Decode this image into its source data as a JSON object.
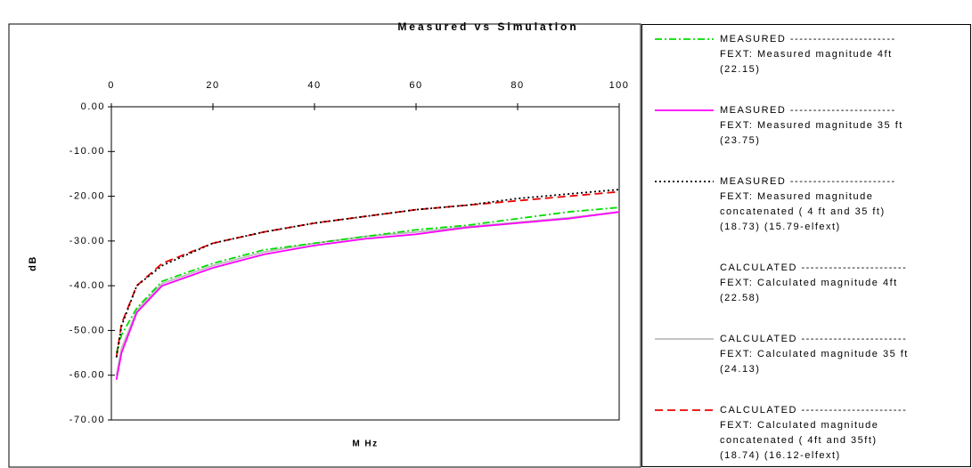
{
  "chart_data": {
    "type": "line",
    "title": "Measured vs Simulation",
    "x_label": "M Hz",
    "y_label": "dB",
    "x": [
      1,
      2,
      5,
      10,
      20,
      30,
      40,
      50,
      60,
      70,
      80,
      90,
      100
    ],
    "xlim": [
      0,
      100
    ],
    "xticks": [
      0,
      20,
      40,
      60,
      80,
      100
    ],
    "ylim": [
      -70,
      0
    ],
    "yticks": [
      {
        "value": 0,
        "label": "0.00"
      },
      {
        "value": -10,
        "label": "-10.00"
      },
      {
        "value": -20,
        "label": "-20.00"
      },
      {
        "value": -30,
        "label": "-30.00"
      },
      {
        "value": -40,
        "label": "-40.00"
      },
      {
        "value": -50,
        "label": "-50.00"
      },
      {
        "value": -60,
        "label": "-60.00"
      },
      {
        "value": -70,
        "label": "-70.00"
      }
    ],
    "series": [
      {
        "name": "MEASURED -----------------------\nFEXT: Measured magnitude  4ft\n(22.15)",
        "color": "#00dd00",
        "dash": "8 3 2 3",
        "values": [
          -55,
          -51,
          -45,
          -39,
          -35,
          -32,
          -30.5,
          -29,
          -27.5,
          -26.5,
          -25,
          -23.5,
          -22.5
        ]
      },
      {
        "name": "MEASURED -----------------------\nFEXT: Measured magnitude  35 ft\n(23.75)",
        "color": "#ff00ff",
        "dash": "",
        "values": [
          -61,
          -55,
          -46,
          -40,
          -36,
          -33,
          -31,
          -29.5,
          -28.5,
          -27,
          -26,
          -25,
          -23.5
        ]
      },
      {
        "name": "MEASURED -----------------------\nFEXT: Measured magnitude\nconcatenated ( 4 ft and  35 ft)\n(18.73) (15.79-elfext)",
        "color": "#000000",
        "dash": "2 3",
        "values": [
          -56,
          -49,
          -40,
          -35.5,
          -30.5,
          -28,
          -26,
          -24.5,
          -23,
          -22,
          -20.5,
          -19.5,
          -18.5
        ]
      },
      {
        "name": "CALCULATED -----------------------\nFEXT: Calculated magnitude  4ft\n(22.58)",
        "color": null,
        "dash": "",
        "values": [
          -55,
          -50,
          -44,
          -38.5,
          -34.5,
          -31.5,
          -30,
          -28.5,
          -27,
          -26,
          -24.5,
          -23.5,
          -22
        ]
      },
      {
        "name": "CALCULATED -----------------------\nFEXT: Calculated magnitude  35 ft\n(24.13)",
        "color": "#bbbbbb",
        "dash": "",
        "values": [
          -60,
          -54,
          -45.5,
          -39.5,
          -35.5,
          -32.5,
          -30.5,
          -29,
          -28,
          -26.8,
          -25.8,
          -24.8,
          -23.5
        ]
      },
      {
        "name": "CALCULATED -----------------------\nFEXT: Calculated magnitude\nconcatenated ( 4ft and  35ft)\n(18.74) (16.12-elfext)",
        "color": "#ee0000",
        "dash": "9 5",
        "values": [
          -56,
          -48.5,
          -40,
          -35,
          -30.5,
          -28,
          -26,
          -24.5,
          -23,
          -22,
          -21,
          -20,
          -19
        ]
      }
    ]
  }
}
